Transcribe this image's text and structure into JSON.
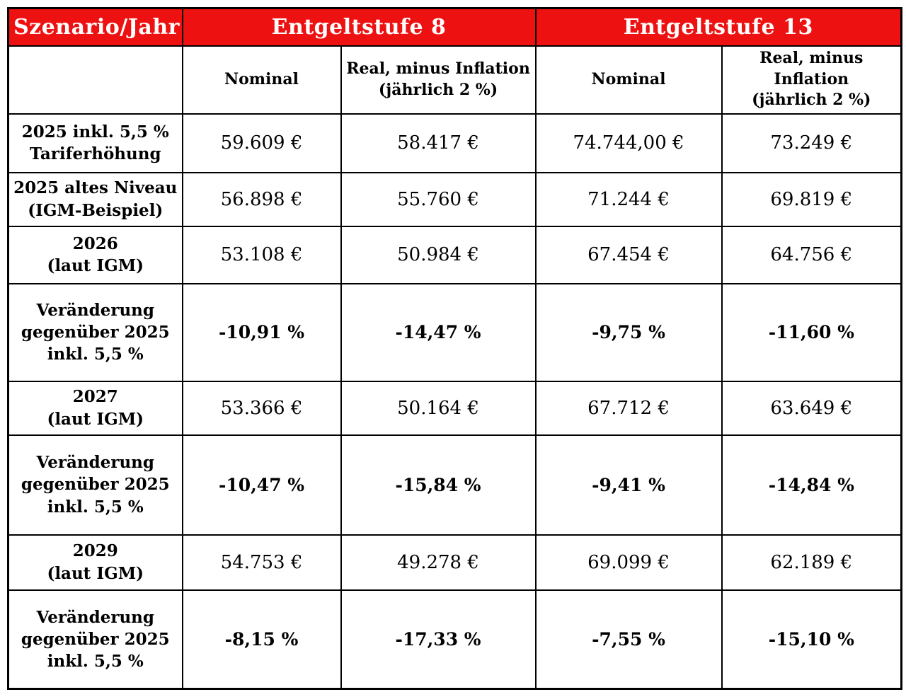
{
  "colors": {
    "header_bg": "#ee1111",
    "header_text": "#ffffff",
    "border": "#000000",
    "body_text": "#000000",
    "cell_bg": "#ffffff"
  },
  "table": {
    "corner_header": "Szenario/Jahr",
    "column_groups": [
      {
        "label": "Entgeltstufe 8"
      },
      {
        "label": "Entgeltstufe 13"
      }
    ],
    "sub_headers": [
      "Nominal",
      "Real, minus Inflation\n(jährlich 2 %)",
      "Nominal",
      "Real, minus Inflation\n(jährlich 2 %)"
    ],
    "rows": [
      {
        "label": "2025 inkl. 5,5 %\nTariferhöhung",
        "type": "value",
        "values": [
          "59.609 €",
          "58.417 €",
          "74.744,00 €",
          "73.249 €"
        ]
      },
      {
        "label": "2025 altes Niveau\n(IGM-Beispiel)",
        "type": "value",
        "values": [
          "56.898 €",
          "55.760 €",
          "71.244 €",
          "69.819 €"
        ]
      },
      {
        "label": "2026\n(laut IGM)",
        "type": "value",
        "values": [
          "53.108 €",
          "50.984 €",
          "67.454 €",
          "64.756 €"
        ]
      },
      {
        "label": "Veränderung\ngegenüber 2025\ninkl. 5,5 %",
        "type": "percent",
        "values": [
          "-10,91 %",
          "-14,47 %",
          "-9,75 %",
          "-11,60 %"
        ]
      },
      {
        "label": "2027\n(laut IGM)",
        "type": "value",
        "values": [
          "53.366 €",
          "50.164 €",
          "67.712 €",
          "63.649 €"
        ]
      },
      {
        "label": "Veränderung\ngegenüber 2025\ninkl. 5,5 %",
        "type": "percent",
        "values": [
          "-10,47 %",
          "-15,84 %",
          "-9,41 %",
          "-14,84 %"
        ]
      },
      {
        "label": "2029\n(laut IGM)",
        "type": "value",
        "values": [
          "54.753 €",
          "49.278 €",
          "69.099 €",
          "62.189 €"
        ]
      },
      {
        "label": "Veränderung\ngegenüber 2025\ninkl. 5,5 %",
        "type": "percent",
        "values": [
          "-8,15 %",
          "-17,33 %",
          "-7,55 %",
          "-15,10 %"
        ]
      }
    ]
  }
}
